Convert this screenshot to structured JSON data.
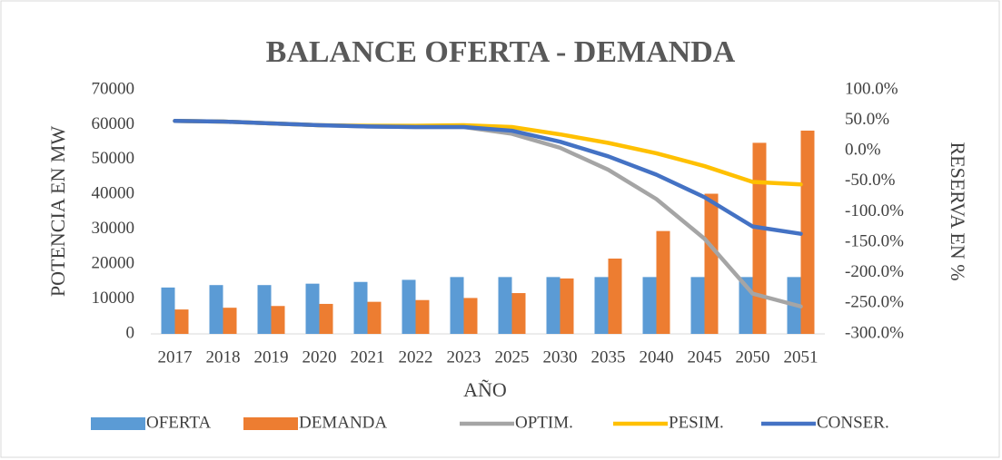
{
  "chart_data": {
    "type": "bar",
    "title": "BALANCE OFERTA - DEMANDA",
    "x_label": "AÑO",
    "y_label": "POTENCIA EN MW",
    "y2_label": "RESERVA EN %",
    "categories": [
      "2017",
      "2018",
      "2019",
      "2020",
      "2021",
      "2022",
      "2023",
      "2025",
      "2030",
      "2035",
      "2040",
      "2045",
      "2050",
      "2051"
    ],
    "ylim": [
      0,
      70000
    ],
    "yticks": [
      0,
      10000,
      20000,
      30000,
      40000,
      50000,
      60000,
      70000
    ],
    "y2lim": [
      -300,
      100
    ],
    "y2ticks": [
      {
        "value": -300,
        "label": "-300.0%"
      },
      {
        "value": -250,
        "label": "-250.0%"
      },
      {
        "value": -200,
        "label": "-200.0%"
      },
      {
        "value": -150,
        "label": "-150.0%"
      },
      {
        "value": -100,
        "label": "-100.0%"
      },
      {
        "value": -50,
        "label": "-50.0%"
      },
      {
        "value": 0,
        "label": "0.0%"
      },
      {
        "value": 50,
        "label": "50.0%"
      },
      {
        "value": 100,
        "label": "100.0%"
      }
    ],
    "legend": "bottom",
    "series": [
      {
        "name": "OFERTA",
        "type": "bar",
        "color": "#5b9bd5",
        "values": [
          13300,
          14000,
          14000,
          14400,
          14900,
          15500,
          16300,
          16300,
          16300,
          16300,
          16300,
          16300,
          16300,
          16300
        ]
      },
      {
        "name": "DEMANDA",
        "type": "bar",
        "color": "#ed7d31",
        "values": [
          7000,
          7500,
          8000,
          8600,
          9200,
          9700,
          10300,
          11700,
          15900,
          21600,
          29500,
          40200,
          54800,
          58300
        ]
      },
      {
        "name": "OPTIM.",
        "type": "line",
        "axis": "y2",
        "color": "#a5a5a5",
        "values": [
          49,
          48,
          45,
          42,
          40,
          39,
          39,
          28,
          5,
          -31,
          -79,
          -144,
          -234,
          -255
        ]
      },
      {
        "name": "PESIM.",
        "type": "line",
        "axis": "y2",
        "color": "#ffc000",
        "values": [
          49,
          48,
          45,
          42,
          41,
          41,
          42,
          39,
          27,
          13,
          -4,
          -25,
          -51,
          -55
        ]
      },
      {
        "name": "CONSER.",
        "type": "line",
        "axis": "y2",
        "color": "#4472c4",
        "values": [
          49,
          48,
          45,
          42,
          40,
          39,
          39,
          33,
          15,
          -9,
          -39,
          -76,
          -124,
          -136
        ]
      }
    ]
  }
}
